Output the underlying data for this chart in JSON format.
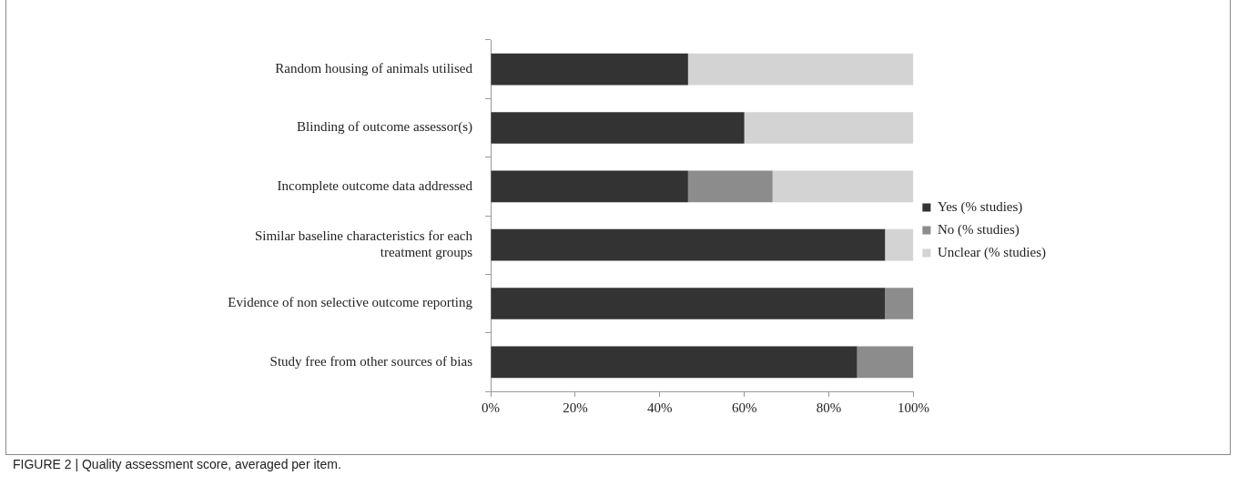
{
  "chart_data": {
    "type": "bar",
    "orientation": "horizontal",
    "stacked": true,
    "categories": [
      "Random housing of animals utilised",
      "Blinding of outcome assessor(s)",
      "Incomplete outcome data addressed",
      "Similar baseline characteristics for each treatment groups",
      "Evidence of non selective outcome reporting",
      "Study free from other sources of bias"
    ],
    "series": [
      {
        "name": "Yes (% studies)",
        "color": "#333333",
        "values": [
          46.7,
          60,
          46.7,
          93.3,
          93.3,
          86.7
        ]
      },
      {
        "name": "No (% studies)",
        "color": "#8c8c8c",
        "values": [
          0,
          0,
          20,
          0,
          6.7,
          13.3
        ]
      },
      {
        "name": "Unclear (% studies)",
        "color": "#d3d3d3",
        "values": [
          53.3,
          40,
          33.3,
          6.7,
          0,
          0
        ]
      }
    ],
    "xlim": [
      0,
      100
    ],
    "xticks": [
      {
        "value": 0,
        "label": "0%"
      },
      {
        "value": 20,
        "label": "20%"
      },
      {
        "value": 40,
        "label": "40%"
      },
      {
        "value": 60,
        "label": "60%"
      },
      {
        "value": 80,
        "label": "80%"
      },
      {
        "value": 100,
        "label": "100%"
      }
    ],
    "grid": false,
    "legend": "right",
    "annotations": [
      "FIGURE 2 | Quality assessment score, averaged per item."
    ]
  }
}
